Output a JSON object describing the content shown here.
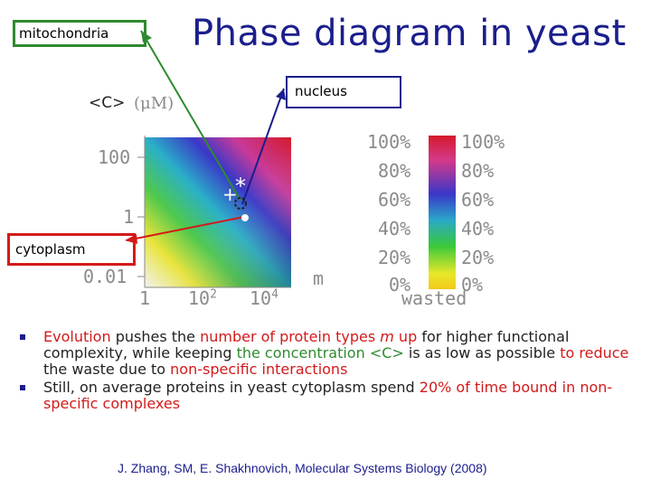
{
  "title": "Phase diagram in yeast",
  "labels": {
    "mitochondria": "mitochondria",
    "nucleus": "nucleus",
    "cytoplasm": "cytoplasm"
  },
  "chart_data": {
    "type": "heatmap",
    "ylabel_prefix": "<C>",
    "ylabel_unit": "(μM)",
    "xlabel": "m",
    "y_ticks": [
      "100",
      "1",
      "0.01"
    ],
    "x_ticks": [
      {
        "base": "1",
        "exp": ""
      },
      {
        "base": "10",
        "exp": "2"
      },
      {
        "base": "10",
        "exp": "4"
      }
    ],
    "colorbar": {
      "title": "wasted",
      "left_ticks": [
        "100%",
        "80%",
        "60%",
        "40%",
        "20%",
        "0%"
      ],
      "right_ticks": [
        "100%",
        "80%",
        "60%",
        "40%",
        "20%",
        "0%"
      ],
      "colors": [
        "#d51a2a",
        "#d43a8a",
        "#3a36c8",
        "#2aa8c8",
        "#3ac83a",
        "#e8e82a",
        "#f2c818"
      ]
    },
    "markers": [
      {
        "name": "mitochondria",
        "symbol": "+"
      },
      {
        "name": "nucleus",
        "symbol": "*"
      },
      {
        "name": "cytoplasm",
        "symbol": "•"
      }
    ]
  },
  "bullets": {
    "b1": {
      "t1": "Evolution",
      "t2": " pushes the ",
      "t3": "number of protein types ",
      "t4": "m",
      "t5": "  up",
      "t6": " for higher functional complexity, while keeping ",
      "t7": "the concentration <C>",
      "t8": " is as low as possible ",
      "t9": "to reduce",
      "t10": " the waste due to ",
      "t11": "non-specific interactions"
    },
    "b2": {
      "t1": "Still, on average proteins in yeast cytoplasm spend ",
      "t2": "20% of time bound in non-specific complexes"
    }
  },
  "citation": "J. Zhang, SM, E. Shakhnovich, Molecular Systems Biology (2008)"
}
